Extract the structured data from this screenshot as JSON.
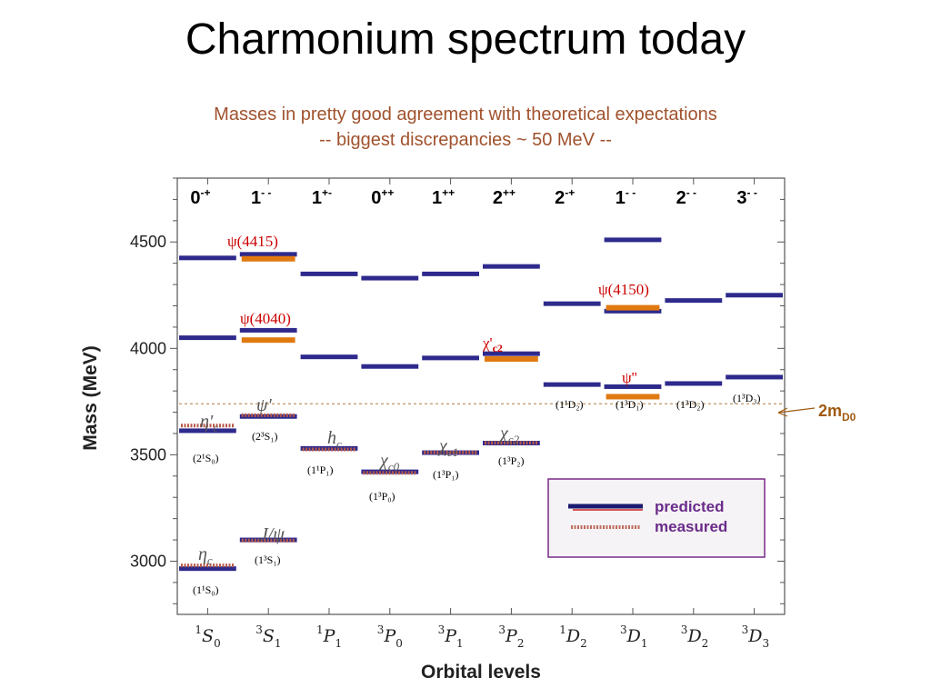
{
  "slide": {
    "title": "Charmonium spectrum today",
    "subtitle_line1": "Masses in pretty good agreement with theoretical expectations",
    "subtitle_line2": "-- biggest discrepancies ~ 50 MeV --"
  },
  "colors": {
    "predicted": "#2e2a8c",
    "measured": "#e07a10",
    "threshold": "#b07a40",
    "legend_border": "#7a2a8a",
    "label_red": "#cc0000"
  },
  "chart_data": {
    "type": "level-diagram",
    "xlabel": "Orbital levels",
    "ylabel": "Mass (MeV)",
    "ylim": [
      2750,
      4800
    ],
    "y_ticks": [
      3000,
      3500,
      4000,
      4500
    ],
    "grid": false,
    "columns": [
      {
        "orb_l": "S",
        "orb_sup": "1",
        "orb_sub": "0",
        "jpc_main": "0",
        "jpc_sup": "-+"
      },
      {
        "orb_l": "S",
        "orb_sup": "3",
        "orb_sub": "1",
        "jpc_main": "1",
        "jpc_sup": "- -"
      },
      {
        "orb_l": "P",
        "orb_sup": "1",
        "orb_sub": "1",
        "jpc_main": "1",
        "jpc_sup": "+-"
      },
      {
        "orb_l": "P",
        "orb_sup": "3",
        "orb_sub": "0",
        "jpc_main": "0",
        "jpc_sup": "++"
      },
      {
        "orb_l": "P",
        "orb_sup": "3",
        "orb_sub": "1",
        "jpc_main": "1",
        "jpc_sup": "++"
      },
      {
        "orb_l": "P",
        "orb_sup": "3",
        "orb_sub": "2",
        "jpc_main": "2",
        "jpc_sup": "++"
      },
      {
        "orb_l": "D",
        "orb_sup": "1",
        "orb_sub": "2",
        "jpc_main": "2",
        "jpc_sup": "-+"
      },
      {
        "orb_l": "D",
        "orb_sup": "3",
        "orb_sub": "1",
        "jpc_main": "1",
        "jpc_sup": "- -"
      },
      {
        "orb_l": "D",
        "orb_sup": "3",
        "orb_sub": "2",
        "jpc_main": "2",
        "jpc_sup": "- -"
      },
      {
        "orb_l": "D",
        "orb_sup": "3",
        "orb_sub": "3",
        "jpc_main": "3",
        "jpc_sup": "- -"
      }
    ],
    "series": [
      {
        "name": "predicted",
        "kind": "predicted",
        "points": [
          {
            "col": 0,
            "mass": 2965
          },
          {
            "col": 0,
            "mass": 3613
          },
          {
            "col": 0,
            "mass": 4050
          },
          {
            "col": 0,
            "mass": 4425
          },
          {
            "col": 1,
            "mass": 3100
          },
          {
            "col": 1,
            "mass": 3680
          },
          {
            "col": 1,
            "mass": 4085
          },
          {
            "col": 1,
            "mass": 4442
          },
          {
            "col": 2,
            "mass": 3530
          },
          {
            "col": 2,
            "mass": 3960
          },
          {
            "col": 2,
            "mass": 4350
          },
          {
            "col": 3,
            "mass": 3420
          },
          {
            "col": 3,
            "mass": 3915
          },
          {
            "col": 3,
            "mass": 4330
          },
          {
            "col": 4,
            "mass": 3510
          },
          {
            "col": 4,
            "mass": 3955
          },
          {
            "col": 4,
            "mass": 4350
          },
          {
            "col": 5,
            "mass": 3555
          },
          {
            "col": 5,
            "mass": 3975
          },
          {
            "col": 5,
            "mass": 4385
          },
          {
            "col": 6,
            "mass": 3830
          },
          {
            "col": 6,
            "mass": 4210
          },
          {
            "col": 7,
            "mass": 3820
          },
          {
            "col": 7,
            "mass": 4175
          },
          {
            "col": 7,
            "mass": 4510
          },
          {
            "col": 8,
            "mass": 3835
          },
          {
            "col": 8,
            "mass": 4225
          },
          {
            "col": 9,
            "mass": 3865
          },
          {
            "col": 9,
            "mass": 4250
          }
        ]
      },
      {
        "name": "measured",
        "kind": "measured",
        "points": [
          {
            "col": 0,
            "mass": 2980,
            "state": "η_c",
            "spec": "(1¹S₀)"
          },
          {
            "col": 0,
            "mass": 3637,
            "state": "η'_c",
            "spec": "(2¹S₀)"
          },
          {
            "col": 1,
            "mass": 3097,
            "state": "J/ψ",
            "spec": "(1³S₁)"
          },
          {
            "col": 1,
            "mass": 3686,
            "state": "ψ'",
            "spec": "(2³S₁)"
          },
          {
            "col": 1,
            "mass": 4039,
            "state": "ψ(4040)"
          },
          {
            "col": 1,
            "mass": 4421,
            "state": "ψ(4415)"
          },
          {
            "col": 2,
            "mass": 3525,
            "state": "h_c",
            "spec": "(1¹P₁)"
          },
          {
            "col": 3,
            "mass": 3415,
            "state": "χ_c0",
            "spec": "(1³P₀)"
          },
          {
            "col": 4,
            "mass": 3511,
            "state": "χ_c1",
            "spec": "(1³P₁)"
          },
          {
            "col": 5,
            "mass": 3556,
            "state": "χ_c2",
            "spec": "(1³P₂)"
          },
          {
            "col": 5,
            "mass": 3950,
            "state": "χ'_c2"
          },
          {
            "col": 7,
            "mass": 3773,
            "state": "ψ''"
          },
          {
            "col": 7,
            "mass": 4191,
            "state": "ψ(4150)"
          }
        ]
      }
    ],
    "threshold": {
      "mass": 3740,
      "label_main": "2m",
      "label_sub": "D0"
    },
    "legend": {
      "position": "bottom-right",
      "predicted": "predicted",
      "measured": "measured"
    },
    "annotations": {
      "psi4415": "ψ(4415)",
      "psi4040": "ψ(4040)",
      "psi4150": "ψ(4150)",
      "chi_c2_prime": "χ'",
      "chi_c2_prime_sub": "c2",
      "psi_dd": "ψ''"
    },
    "symbols": {
      "eta_c": "η",
      "eta_c_sub": "c",
      "eta_c_prime": "η'",
      "eta_c_prime_sub": "c",
      "jpsi": "J/ψ",
      "psi_prime": "ψ'",
      "h_c": "h",
      "h_c_sub": "c",
      "chi_c0": "χ",
      "chi_c0_sub": "c0",
      "chi_c1": "χ",
      "chi_c1_sub": "c1",
      "chi_c2": "χ",
      "chi_c2_sub": "c2"
    },
    "spec_labels": {
      "s11_0": "(1¹S₀)",
      "s21_0": "(2¹S₀)",
      "s13_1": "(1³S₁)",
      "s23_1": "(2³S₁)",
      "p11_1": "(1¹P₁)",
      "p13_0": "(1³P₀)",
      "p13_1": "(1³P₁)",
      "p13_2": "(1³P₂)",
      "d11_2": "(1¹D₂)",
      "d13_1": "(1³D₁)",
      "d13_2": "(1³D₂)",
      "d13_3": "(1³D₃)"
    }
  }
}
